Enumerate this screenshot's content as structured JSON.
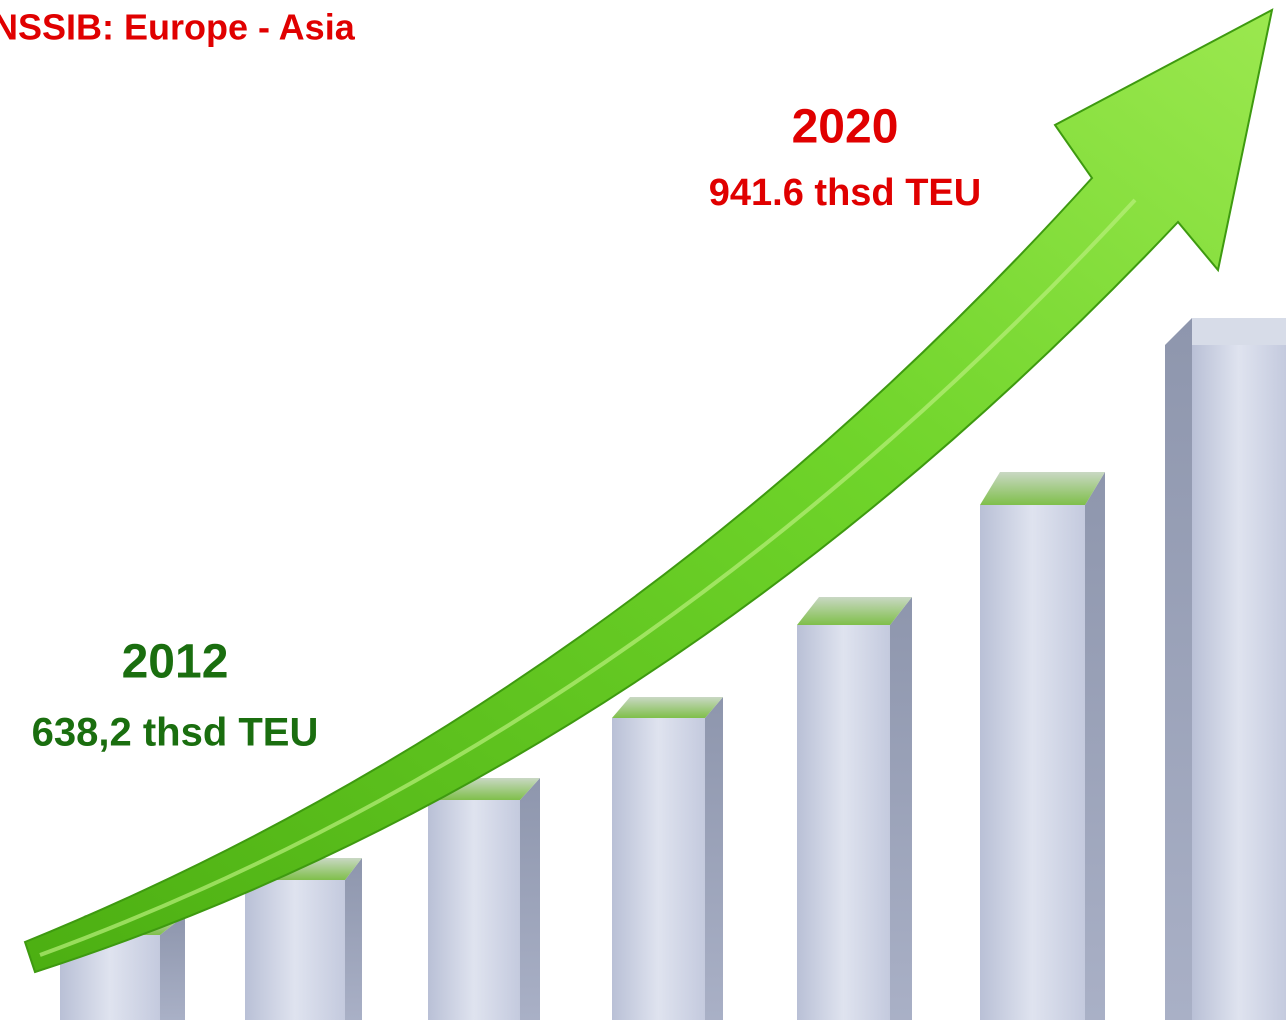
{
  "header": {
    "title": "NSSIB: Europe - Asia"
  },
  "labels": [
    {
      "year": "2012",
      "value": "638,2 thsd TEU"
    },
    {
      "year": "2020",
      "value": "941.6 thsd TEU"
    }
  ]
}
